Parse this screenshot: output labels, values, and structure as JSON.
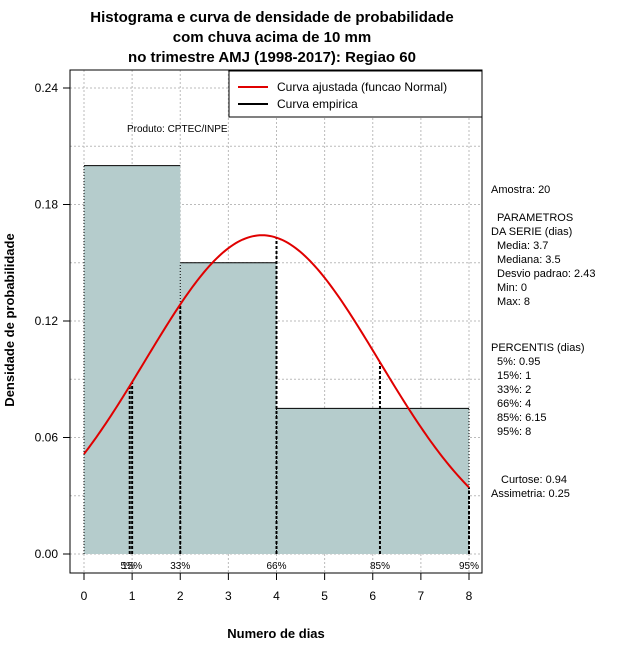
{
  "chart_data": {
    "type": "histogram",
    "title": [
      "Histograma e curva de densidade de probabilidade",
      "com chuva acima de 10 mm",
      "no trimestre AMJ (1998-2017): Regiao 60"
    ],
    "xlabel": "Numero de dias",
    "ylabel": "Densidade de probabilidade",
    "xlim": [
      0,
      8
    ],
    "ylim": [
      0,
      0.24
    ],
    "x_ticks": [
      "0",
      "1",
      "2",
      "3",
      "4",
      "5",
      "6",
      "7",
      "8"
    ],
    "y_ticks": [
      "0.00",
      "0.06",
      "0.12",
      "0.18",
      "0.24"
    ],
    "grid": true,
    "bars": [
      {
        "x0": 0,
        "x1": 2,
        "density": 0.2
      },
      {
        "x0": 2,
        "x1": 4,
        "density": 0.15
      },
      {
        "x0": 4,
        "x1": 8,
        "density": 0.075
      }
    ],
    "normal_curve": {
      "name": "Curva ajustada (funcao Normal)",
      "mean": 3.7,
      "sd": 2.43,
      "color": "#e00000",
      "x_from": 0,
      "x_to": 8
    },
    "empirical_curve": {
      "name": "Curva empirica",
      "color": "#000000"
    },
    "percentile_lines": [
      {
        "label": "5%",
        "x": 0.95
      },
      {
        "label": "15%",
        "x": 1
      },
      {
        "label": "33%",
        "x": 2
      },
      {
        "label": "66%",
        "x": 4
      },
      {
        "label": "85%",
        "x": 6.15
      },
      {
        "label": "95%",
        "x": 8
      }
    ],
    "product_note": "Produto: CPTEC/INPE",
    "legend_position": "top-right"
  },
  "side_panel": {
    "sample": "Amostra: 20",
    "params_title": "PARAMETROS",
    "params_subtitle": "DA SERIE (dias)",
    "params": [
      "Media: 3.7",
      "Mediana: 3.5",
      "Desvio padrao: 2.43",
      "Min: 0",
      "Max: 8"
    ],
    "percentis_title": "PERCENTIS (dias)",
    "percentis": [
      "5%: 0.95",
      "15%: 1",
      "33%: 2",
      "66%: 4",
      "85%: 6.15",
      "95%: 8"
    ],
    "curtose": "Curtose: 0.94",
    "assimetria": "Assimetria: 0.25"
  },
  "colors": {
    "bar_fill": "#b5cccc",
    "grid": "#bbbbbb",
    "normal": "#e00000"
  }
}
